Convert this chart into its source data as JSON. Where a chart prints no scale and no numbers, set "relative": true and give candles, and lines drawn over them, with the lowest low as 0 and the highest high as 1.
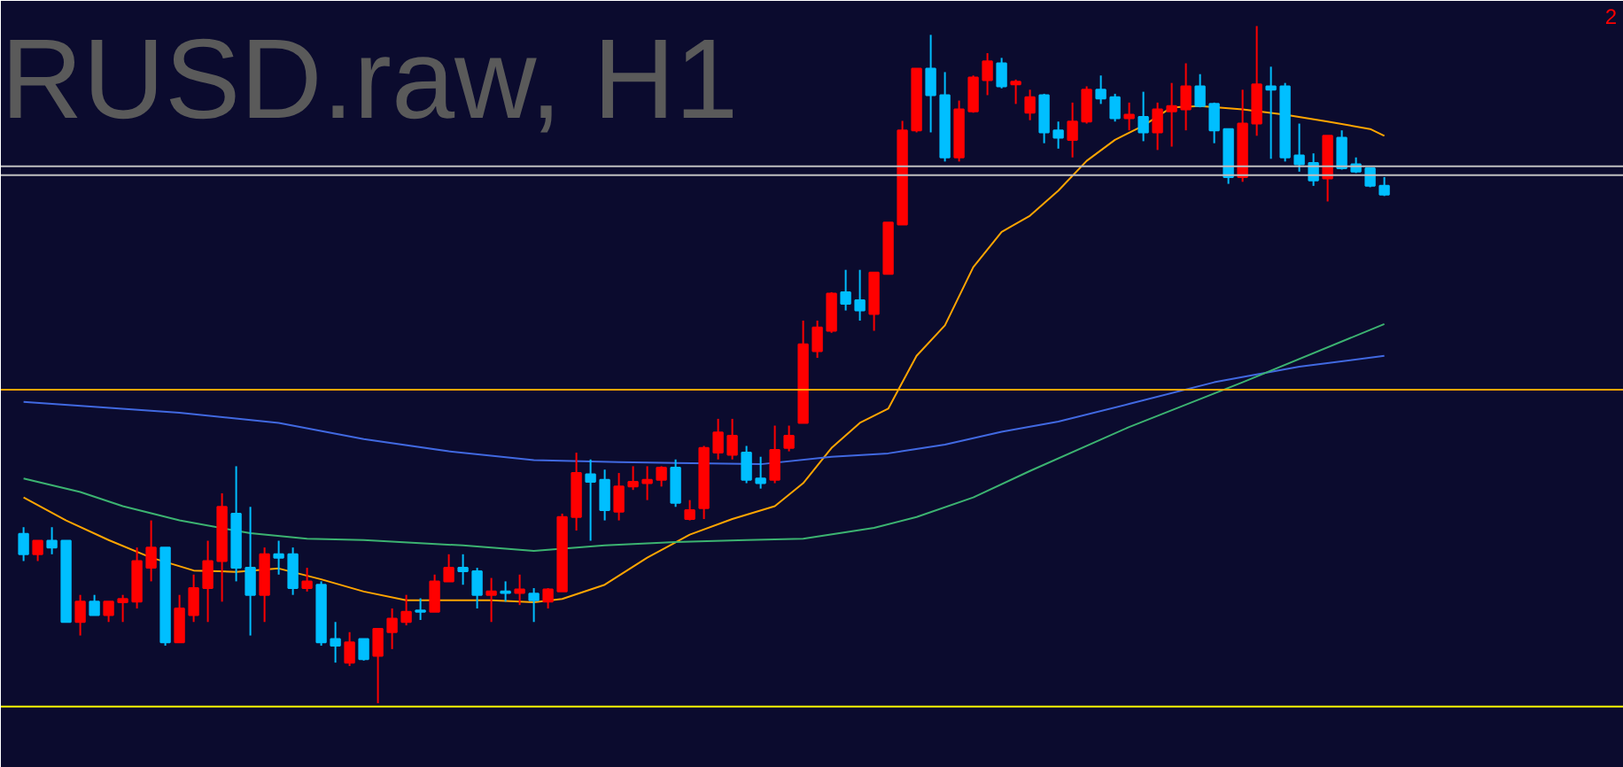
{
  "chart_data": {
    "type": "candlestick",
    "title": "RUSD.raw, H1",
    "relative": true,
    "tick_labels": false,
    "categories": [
      null,
      null,
      null,
      null,
      null,
      null,
      null,
      null,
      null,
      null,
      null,
      null,
      null,
      null,
      null,
      null,
      null,
      null,
      null,
      null,
      null,
      null,
      null,
      null,
      null,
      null,
      null,
      null,
      null,
      null,
      null,
      null,
      null,
      null,
      null,
      null,
      null,
      null,
      null,
      null,
      null,
      null,
      null,
      null,
      null,
      null,
      null,
      null,
      null,
      null,
      null,
      null,
      null,
      null,
      null,
      null,
      null,
      null,
      null,
      null,
      null,
      null,
      null,
      null,
      null,
      null,
      null,
      null,
      null,
      null,
      null,
      null,
      null,
      null,
      null,
      null,
      null,
      null,
      null,
      null,
      null,
      null,
      null,
      null,
      null,
      null,
      null,
      null,
      null,
      null,
      null,
      null,
      null,
      null,
      null,
      null,
      null
    ],
    "ohlc": [
      [
        0.25,
        0.26,
        0.21,
        0.22
      ],
      [
        0.22,
        0.24,
        0.21,
        0.24
      ],
      [
        0.24,
        0.26,
        0.22,
        0.23
      ],
      [
        0.24,
        0.24,
        0.12,
        0.12
      ],
      [
        0.12,
        0.16,
        0.1,
        0.15
      ],
      [
        0.15,
        0.16,
        0.13,
        0.13
      ],
      [
        0.13,
        0.15,
        0.12,
        0.15
      ],
      [
        0.149,
        0.16,
        0.12,
        0.154
      ],
      [
        0.15,
        0.23,
        0.14,
        0.21
      ],
      [
        0.2,
        0.27,
        0.18,
        0.23
      ],
      [
        0.23,
        0.23,
        0.085,
        0.09
      ],
      [
        0.09,
        0.16,
        0.09,
        0.14
      ],
      [
        0.13,
        0.19,
        0.12,
        0.17
      ],
      [
        0.17,
        0.24,
        0.12,
        0.21
      ],
      [
        0.21,
        0.31,
        0.15,
        0.29
      ],
      [
        0.28,
        0.35,
        0.18,
        0.2
      ],
      [
        0.2,
        0.29,
        0.1,
        0.16
      ],
      [
        0.16,
        0.23,
        0.12,
        0.22
      ],
      [
        0.22,
        0.24,
        0.19,
        0.215
      ],
      [
        0.22,
        0.23,
        0.16,
        0.17
      ],
      [
        0.17,
        0.2,
        0.165,
        0.18
      ],
      [
        0.175,
        0.18,
        0.085,
        0.09
      ],
      [
        0.095,
        0.12,
        0.06,
        0.085
      ],
      [
        0.06,
        0.105,
        0.055,
        0.09
      ],
      [
        0.095,
        0.095,
        0.063,
        0.065
      ],
      [
        0.07,
        0.11,
        0,
        0.11
      ],
      [
        0.105,
        0.14,
        0.08,
        0.125
      ],
      [
        0.12,
        0.16,
        0.115,
        0.135
      ],
      [
        0.137,
        0.155,
        0.123,
        0.135
      ],
      [
        0.135,
        0.19,
        0.135,
        0.18
      ],
      [
        0.18,
        0.22,
        0.18,
        0.2
      ],
      [
        0.2,
        0.22,
        0.175,
        0.195
      ],
      [
        0.195,
        0.2,
        0.14,
        0.16
      ],
      [
        0.16,
        0.185,
        0.12,
        0.165
      ],
      [
        0.165,
        0.18,
        0.15,
        0.163
      ],
      [
        0.163,
        0.19,
        0.145,
        0.168
      ],
      [
        0.162,
        0.17,
        0.12,
        0.152
      ],
      [
        0.15,
        0.17,
        0.14,
        0.168
      ],
      [
        0.165,
        0.28,
        0.165,
        0.275
      ],
      [
        0.275,
        0.37,
        0.255,
        0.34
      ],
      [
        0.338,
        0.36,
        0.24,
        0.327
      ],
      [
        0.33,
        0.345,
        0.27,
        0.285
      ],
      [
        0.283,
        0.34,
        0.27,
        0.32
      ],
      [
        0.32,
        0.35,
        0.315,
        0.327
      ],
      [
        0.325,
        0.35,
        0.3,
        0.33
      ],
      [
        0.33,
        0.35,
        0.32,
        0.348
      ],
      [
        0.348,
        0.36,
        0.29,
        0.296
      ],
      [
        0.272,
        0.3,
        0.27,
        0.285
      ],
      [
        0.288,
        0.38,
        0.272,
        0.377
      ],
      [
        0.37,
        0.42,
        0.36,
        0.4
      ],
      [
        0.367,
        0.42,
        0.36,
        0.395
      ],
      [
        0.37,
        0.38,
        0.325,
        0.33
      ],
      [
        0.332,
        0.364,
        0.317,
        0.325
      ],
      [
        0.33,
        0.41,
        0.325,
        0.374
      ],
      [
        0.377,
        0.41,
        0.372,
        0.395
      ],
      [
        0.414,
        0.565,
        0.414,
        0.53
      ],
      [
        0.52,
        0.565,
        0.51,
        0.555
      ],
      [
        0.55,
        0.607,
        0.547,
        0.605
      ],
      [
        0.607,
        0.64,
        0.58,
        0.59
      ],
      [
        0.595,
        0.64,
        0.565,
        0.58
      ],
      [
        0.575,
        0.636,
        0.55,
        0.636
      ],
      [
        0.634,
        0.71,
        0.634,
        0.71
      ],
      [
        0.707,
        0.86,
        0.707,
        0.846
      ],
      [
        0.846,
        0.937,
        0.843,
        0.937
      ],
      [
        0.937,
        0.987,
        0.843,
        0.898
      ],
      [
        0.898,
        0.932,
        0.8,
        0.806
      ],
      [
        0.806,
        0.89,
        0.8,
        0.877
      ],
      [
        0.874,
        0.927,
        0.872,
        0.924
      ],
      [
        0.92,
        0.96,
        0.898,
        0.948
      ],
      [
        0.945,
        0.953,
        0.908,
        0.911
      ],
      [
        0.914,
        0.921,
        0.885,
        0.918
      ],
      [
        0.872,
        0.906,
        0.861,
        0.895
      ],
      [
        0.898,
        0.9,
        0.827,
        0.843
      ],
      [
        0.846,
        0.859,
        0.819,
        0.835
      ],
      [
        0.832,
        0.887,
        0.806,
        0.859
      ],
      [
        0.859,
        0.911,
        0.856,
        0.906
      ],
      [
        0.906,
        0.927,
        0.885,
        0.893
      ],
      [
        0.895,
        0.9,
        0.859,
        0.864
      ],
      [
        0.864,
        0.887,
        0.846,
        0.869
      ],
      [
        0.866,
        0.903,
        0.83,
        0.843
      ],
      [
        0.843,
        0.887,
        0.817,
        0.877
      ],
      [
        0.874,
        0.916,
        0.822,
        0.882
      ],
      [
        0.877,
        0.945,
        0.846,
        0.911
      ],
      [
        0.911,
        0.929,
        0.88,
        0.882
      ],
      [
        0.885,
        0.887,
        0.827,
        0.846
      ],
      [
        0.848,
        0.848,
        0.767,
        0.777
      ],
      [
        0.777,
        0.906,
        0.77,
        0.856
      ],
      [
        0.856,
        1,
        0.838,
        0.914
      ],
      [
        0.911,
        0.94,
        0.804,
        0.906
      ],
      [
        0.911,
        0.916,
        0.8,
        0.806
      ],
      [
        0.809,
        0.856,
        0.785,
        0.796
      ],
      [
        0.798,
        0.812,
        0.764,
        0.772
      ],
      [
        0.775,
        0.838,
        0.741,
        0.838
      ],
      [
        0.835,
        0.846,
        0.788,
        0.79
      ],
      [
        0.796,
        0.806,
        0.783,
        0.785
      ],
      [
        0.79,
        0.79,
        0.762,
        0.764
      ],
      [
        0.764,
        0.777,
        0.749,
        0.751
      ]
    ],
    "series": [
      {
        "type": "line",
        "color": "#ffa500",
        "values": [
          0.304,
          null,
          null,
          0.27,
          null,
          null,
          0.241,
          null,
          null,
          0.215,
          null,
          null,
          0.196,
          null,
          null,
          0.194,
          null,
          null,
          0.199,
          null,
          null,
          0.183,
          null,
          null,
          0.165,
          null,
          null,
          0.152,
          null,
          null,
          0.152,
          null,
          null,
          0.152,
          null,
          null,
          0.149,
          null,
          0.154,
          null,
          null,
          0.175,
          null,
          null,
          0.215,
          null,
          null,
          0.249,
          null,
          null,
          0.272,
          null,
          null,
          0.291,
          null,
          0.325,
          null,
          0.377,
          null,
          0.414,
          null,
          0.435,
          null,
          0.513,
          null,
          0.558,
          null,
          0.644,
          null,
          0.696,
          null,
          0.72,
          null,
          0.757,
          null,
          0.801,
          null,
          0.832,
          null,
          0.853,
          null,
          0.88,
          null,
          0.882,
          null,
          null,
          0.877,
          null,
          null,
          0.869,
          null,
          null,
          0.859,
          null,
          null,
          0.848,
          0.838
        ]
      },
      {
        "type": "line",
        "color": "#4169e1",
        "values": [
          0.445,
          null,
          null,
          null,
          null,
          null,
          null,
          null,
          null,
          null,
          null,
          0.429,
          null,
          null,
          null,
          null,
          null,
          null,
          0.414,
          null,
          null,
          null,
          null,
          null,
          0.39,
          null,
          null,
          null,
          null,
          null,
          0.372,
          null,
          null,
          null,
          null,
          null,
          0.359,
          null,
          null,
          null,
          null,
          null,
          0.356,
          null,
          null,
          null,
          null,
          null,
          null,
          null,
          null,
          null,
          0.353,
          null,
          null,
          null,
          null,
          0.364,
          null,
          null,
          null,
          0.369,
          null,
          null,
          null,
          0.382,
          null,
          null,
          null,
          0.401,
          null,
          null,
          null,
          0.416,
          null,
          null,
          null,
          null,
          0.442,
          null,
          null,
          null,
          null,
          null,
          0.474,
          null,
          null,
          null,
          null,
          null,
          0.497,
          null,
          null,
          null,
          null,
          null,
          0.513
        ]
      },
      {
        "type": "line",
        "color": "#3cb371",
        "values": [
          0.332,
          null,
          null,
          null,
          0.312,
          null,
          null,
          0.291,
          null,
          null,
          null,
          0.27,
          null,
          null,
          null,
          null,
          0.251,
          null,
          null,
          null,
          0.243,
          null,
          null,
          null,
          0.241,
          null,
          null,
          null,
          null,
          null,
          null,
          0.233,
          null,
          null,
          null,
          null,
          0.225,
          null,
          null,
          null,
          null,
          0.233,
          null,
          null,
          null,
          null,
          0.238,
          null,
          null,
          null,
          null,
          0.241,
          null,
          null,
          null,
          0.243,
          null,
          null,
          null,
          null,
          0.259,
          null,
          null,
          0.275,
          null,
          null,
          null,
          0.304,
          null,
          null,
          null,
          0.343,
          null,
          null,
          null,
          null,
          null,
          null,
          0.408,
          null,
          null,
          null,
          null,
          null,
          null,
          null,
          0.474,
          null,
          null,
          null,
          null,
          null,
          null,
          null,
          null,
          null,
          0.56
        ]
      }
    ],
    "ref_lines": [
      {
        "axis": "y",
        "value": 0.463,
        "color": "#ffa500"
      },
      {
        "axis": "y",
        "value": -0.005,
        "color": "#ffff00"
      },
      {
        "axis": "y",
        "value": 0.793,
        "color": "#c0c0c0"
      },
      {
        "axis": "y",
        "value": 0.78,
        "color": "#c0c0c0"
      }
    ],
    "annotations": [
      "2"
    ]
  }
}
